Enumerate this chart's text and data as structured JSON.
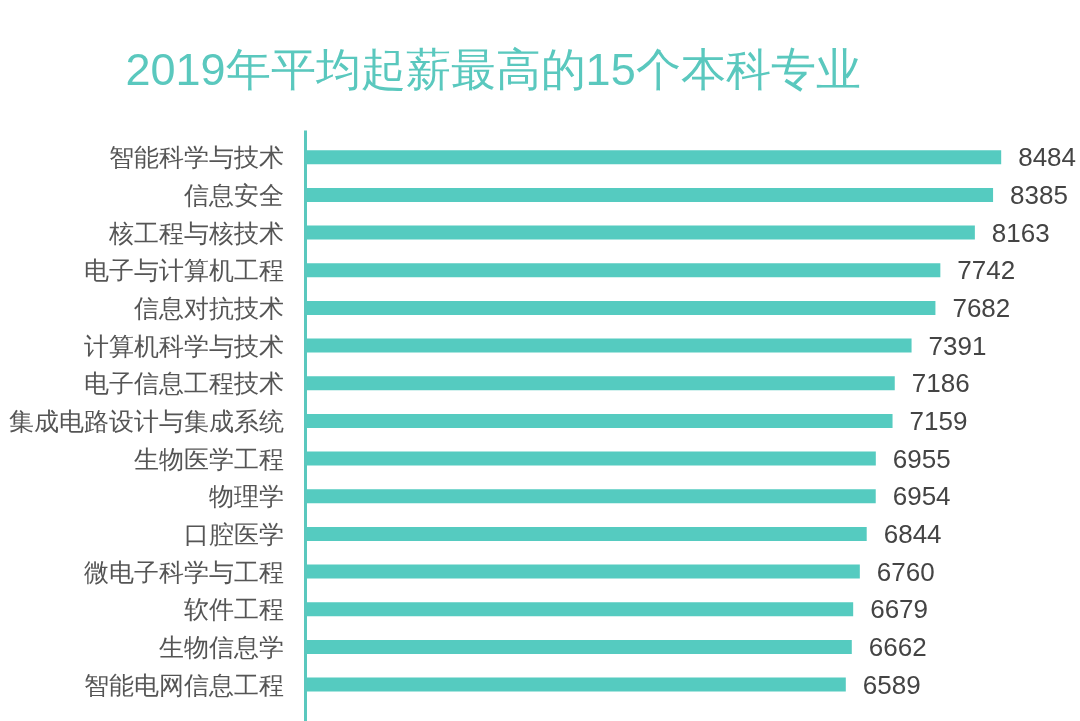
{
  "chart_data": {
    "type": "bar",
    "orientation": "horizontal",
    "title": "2019年平均起薪最高的15个本科专业",
    "categories": [
      "智能科学与技术",
      "信息安全",
      "核工程与核技术",
      "电子与计算机工程",
      "信息对抗技术",
      "计算机科学与技术",
      "电子信息工程技术",
      "集成电路设计与集成系统",
      "生物医学工程",
      "物理学",
      "口腔医学",
      "微电子科学与工程",
      "软件工程",
      "生物信息学",
      "智能电网信息工程"
    ],
    "values": [
      8484,
      8385,
      8163,
      7742,
      7682,
      7391,
      7186,
      7159,
      6955,
      6954,
      6844,
      6760,
      6679,
      6662,
      6589
    ],
    "color": "#55cbc0",
    "tick_labels": "y",
    "data_labels": true
  }
}
